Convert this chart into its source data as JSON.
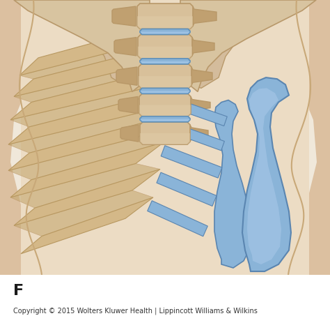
{
  "figure_label": "F",
  "copyright_text": "Copyright © 2015 Wolters Kluwer Health | Lippincott Williams & Wilkins",
  "background_color": "#ffffff",
  "label_fontsize": 16,
  "copyright_fontsize": 7.0,
  "fig_width": 4.74,
  "fig_height": 4.53,
  "dpi": 100,
  "body_bg": "#e8d5be",
  "body_shadow": "#c9a882",
  "bone_fill": "#d8c09a",
  "bone_edge": "#b89868",
  "bone_dark": "#c0a070",
  "disc_fill": "#8ab4d8",
  "disc_edge": "#6090b8",
  "cart_fill": "#8ab4d8",
  "cart_edge": "#5a85b0",
  "skin_light": "#f0e0c8",
  "skin_mid": "#dcc0a0",
  "skin_dark": "#c8a878"
}
